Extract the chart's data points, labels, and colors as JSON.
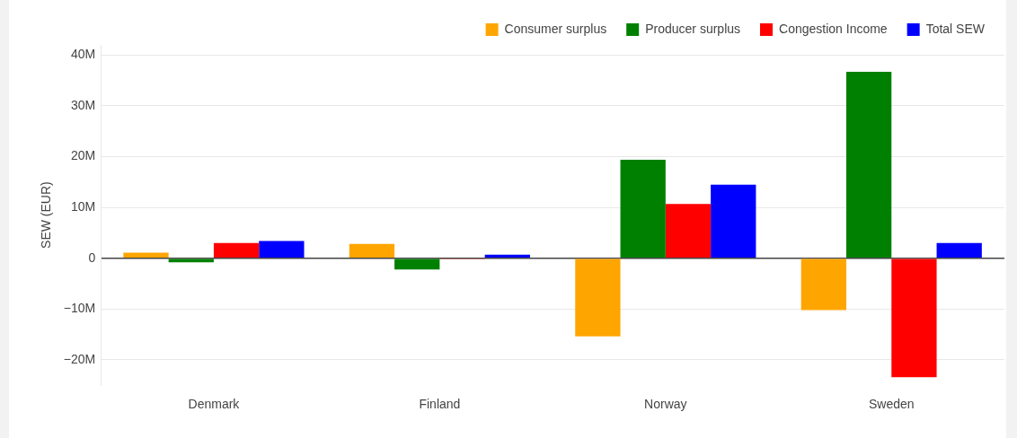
{
  "chart_data": {
    "type": "bar",
    "categories": [
      "Denmark",
      "Finland",
      "Norway",
      "Sweden"
    ],
    "ylabel": "SEW (EUR)",
    "series": [
      {
        "name": "Consumer surplus",
        "color": "#ffa500",
        "values": [
          1100000,
          2800000,
          -15400000,
          -10200000
        ]
      },
      {
        "name": "Producer surplus",
        "color": "#008000",
        "values": [
          -800000,
          -2200000,
          19400000,
          36700000
        ]
      },
      {
        "name": "Congestion Income",
        "color": "#ff0000",
        "values": [
          3000000,
          -200000,
          10700000,
          -23400000
        ]
      },
      {
        "name": "Total SEW",
        "color": "#0000ff",
        "values": [
          3400000,
          700000,
          14500000,
          3000000
        ]
      }
    ],
    "ylim": [
      -25000000,
      42000000
    ],
    "yticks": [
      {
        "value": -20000000,
        "label": "−20M"
      },
      {
        "value": -10000000,
        "label": "−10M"
      },
      0,
      {
        "value": 10000000,
        "label": "10M"
      },
      {
        "value": 20000000,
        "label": "20M"
      },
      {
        "value": 30000000,
        "label": "30M"
      },
      {
        "value": 40000000,
        "label": "40M"
      }
    ],
    "grid": "y",
    "legend": "top right"
  }
}
